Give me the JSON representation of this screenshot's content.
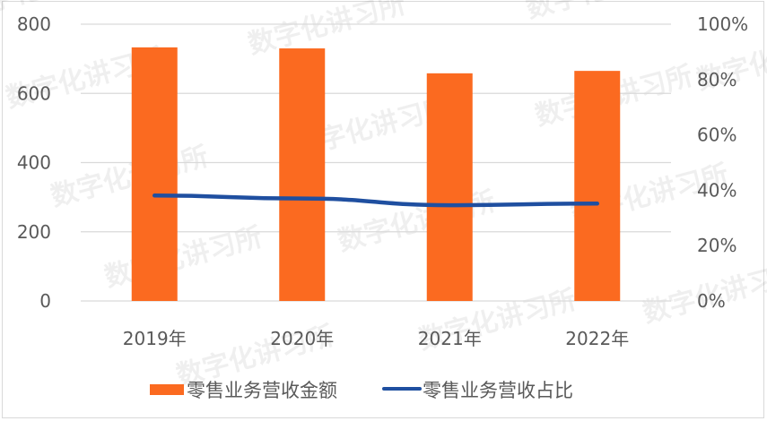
{
  "chart_data": {
    "type": "bar+line",
    "categories": [
      "2019年",
      "2020年",
      "2021年",
      "2022年"
    ],
    "series": [
      {
        "name": "零售业务营收金额",
        "type": "bar",
        "axis": "left",
        "color": "#FB6A20",
        "values": [
          733,
          730,
          658,
          665
        ]
      },
      {
        "name": "零售业务营收占比",
        "type": "line",
        "axis": "right",
        "color": "#1F4FA0",
        "values": [
          0.381,
          0.37,
          0.346,
          0.352
        ]
      }
    ],
    "title": "",
    "xlabel": "",
    "ylabel": "",
    "y_left": {
      "ylim": [
        0,
        800
      ],
      "ticks": [
        "0",
        "200",
        "400",
        "600",
        "800"
      ]
    },
    "y_right": {
      "ylim": [
        0,
        1
      ],
      "ticks": [
        "0%",
        "20%",
        "40%",
        "60%",
        "80%",
        "100%"
      ]
    },
    "grid": true,
    "legend_position": "bottom"
  },
  "legend": [
    {
      "label": "零售业务营收金额",
      "swatch": "bar"
    },
    {
      "label": "零售业务营收占比",
      "swatch": "line"
    }
  ],
  "watermark": "数字化讲习所",
  "colors": {
    "bar": "#FB6A20",
    "line": "#1F4FA0",
    "grid": "#d9d9d9",
    "text": "#595959"
  }
}
